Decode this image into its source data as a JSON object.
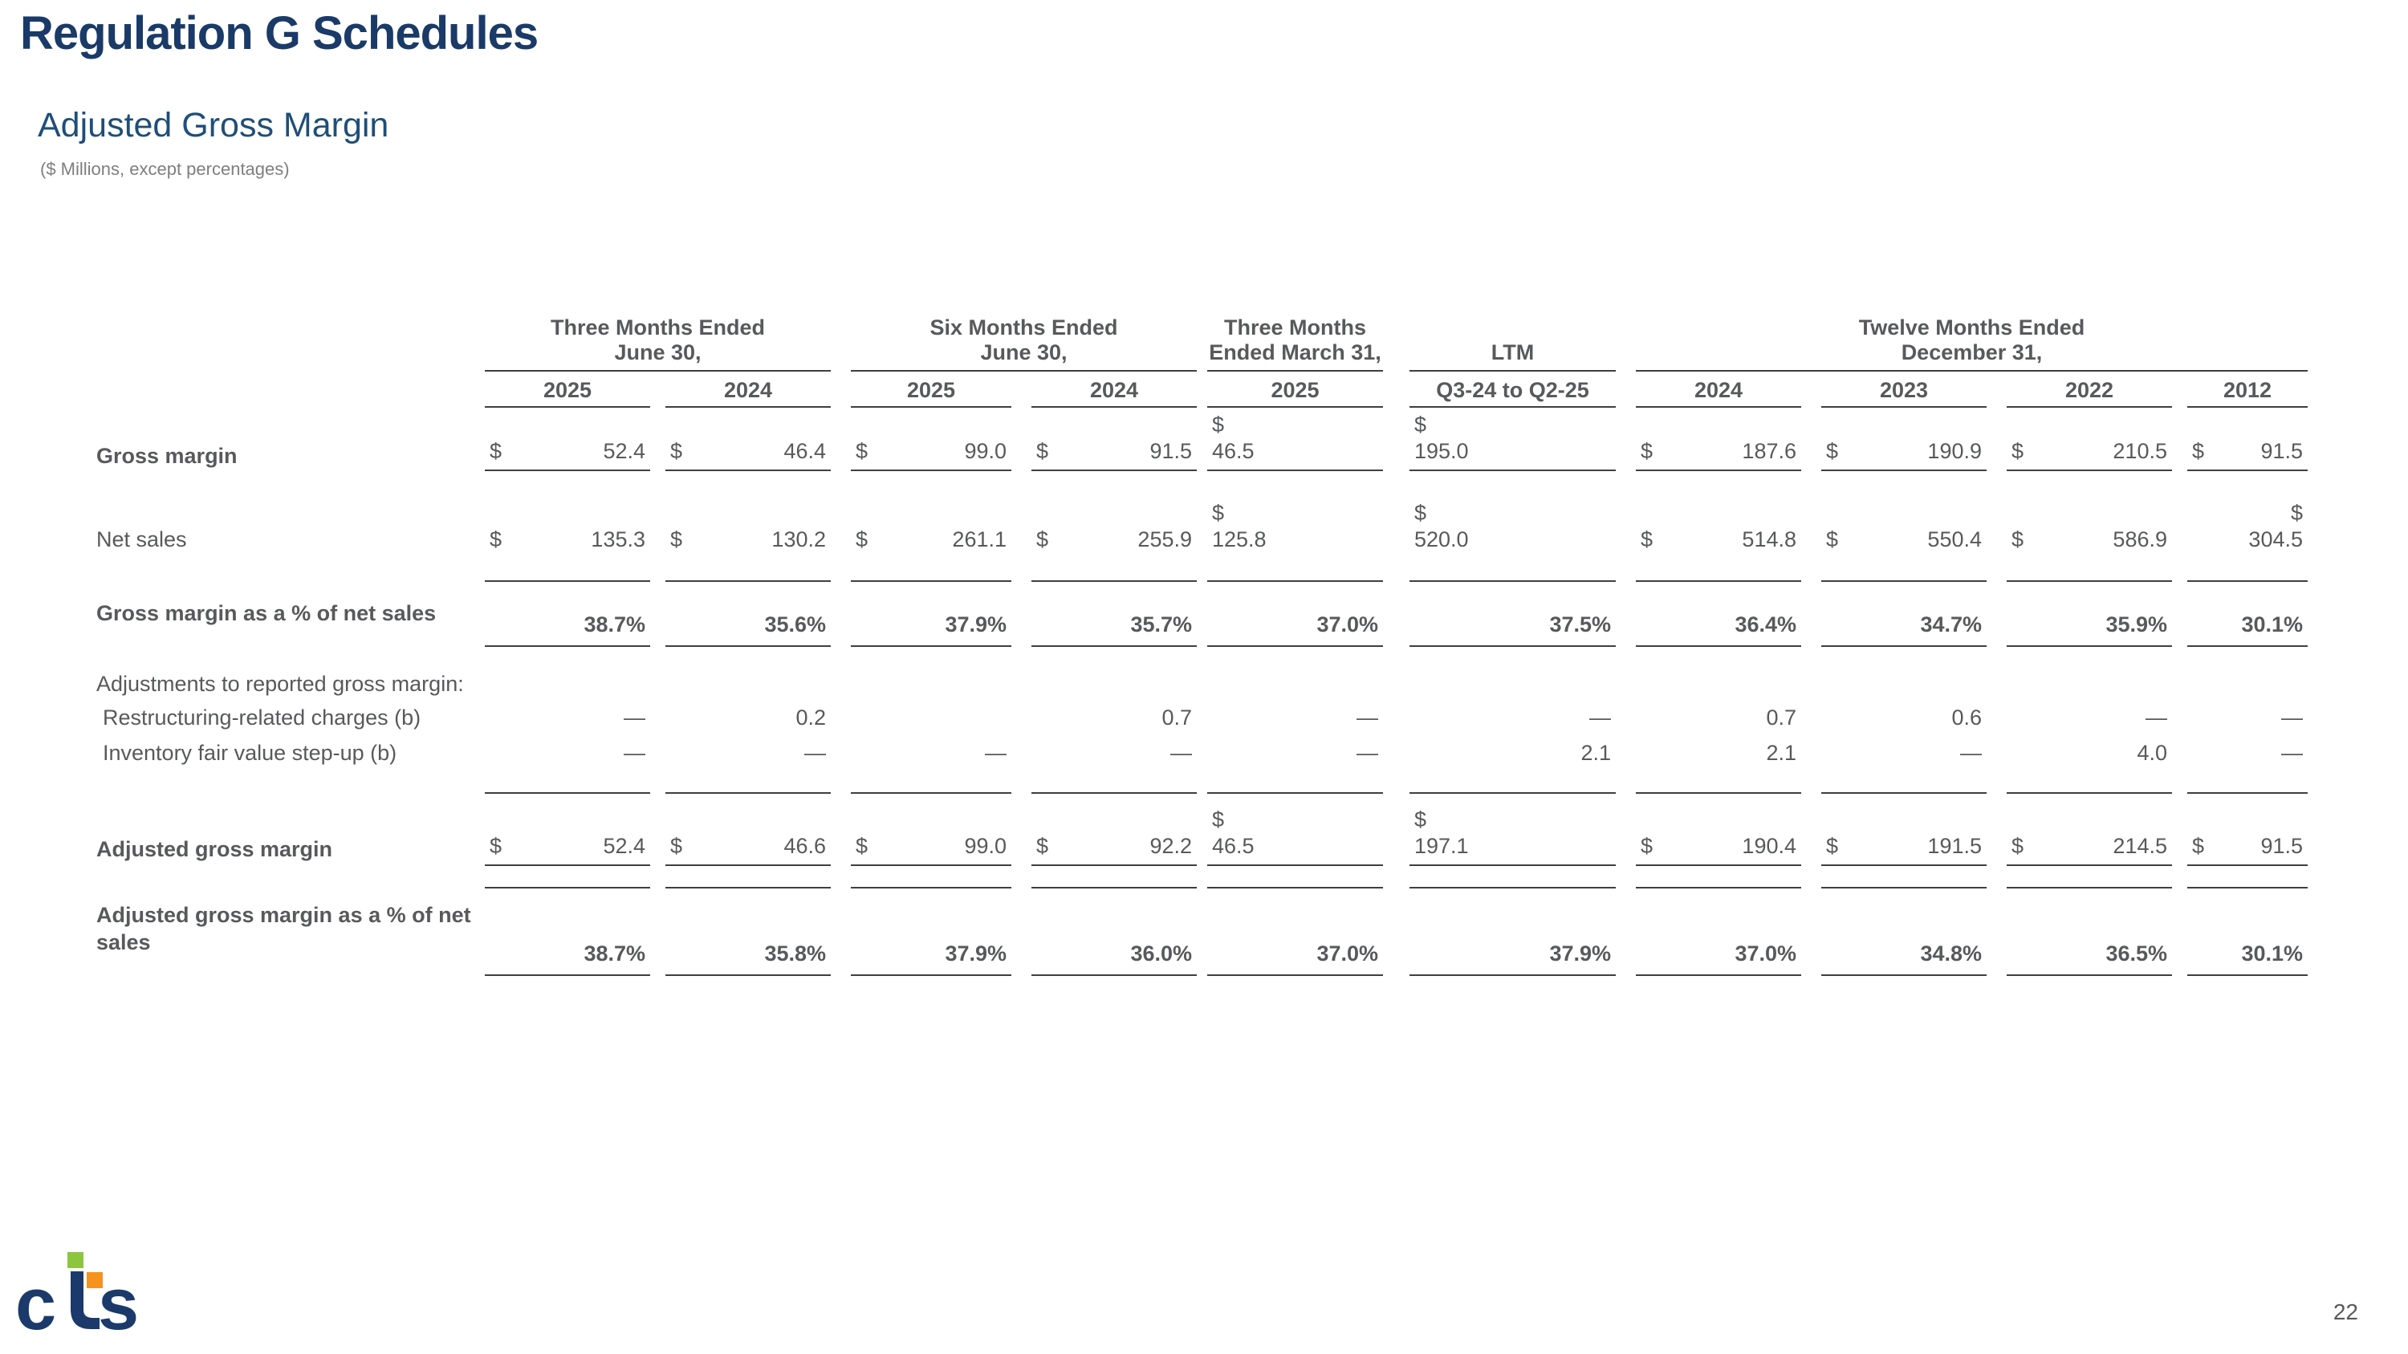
{
  "page": {
    "title": "Regulation G Schedules",
    "subtitle": "Adjusted Gross Margin",
    "units_note": "($ Millions, except percentages)",
    "page_number": "22",
    "logo": {
      "text": "cts",
      "c": "c",
      "s": "s",
      "navy": "#1b3a6b",
      "green": "#8cc63f",
      "orange": "#f6921e"
    }
  },
  "colors": {
    "title": "#1a3a68",
    "subtitle": "#1f4e79",
    "body_text": "#58595b",
    "note_text": "#7f7f7f",
    "rule": "#3f3f3f"
  },
  "table": {
    "groups": [
      {
        "line1": "Three Months Ended",
        "line2": "June 30,",
        "span": 2
      },
      {
        "line1": "Six Months Ended",
        "line2": "June 30,",
        "span": 2
      },
      {
        "line1": "Three Months",
        "line2": "Ended March 31,",
        "span": 1
      },
      {
        "line1": "",
        "line2": "LTM",
        "span": 1
      },
      {
        "line1": "Twelve Months Ended",
        "line2": "December 31,",
        "span": 4
      }
    ],
    "columns": [
      "2025",
      "2024",
      "2025",
      "2024",
      "2025",
      "Q3-24 to Q2-25",
      "2024",
      "2023",
      "2022",
      "2012"
    ],
    "rows": [
      {
        "id": "gross-margin",
        "label": "Gross margin",
        "label_bold": true,
        "format": "currency",
        "border_bottom": true,
        "wrap_left": [
          4,
          5
        ],
        "wrap_right": [],
        "values": [
          "52.4",
          "46.4",
          "99.0",
          "91.5",
          "46.5",
          "195.0",
          "187.6",
          "190.9",
          "210.5",
          "91.5"
        ]
      },
      {
        "id": "net-sales",
        "label": "Net sales",
        "label_bold": false,
        "format": "currency",
        "border_bottom": false,
        "wrap_left": [
          4,
          5
        ],
        "wrap_right": [
          9
        ],
        "values": [
          "135.3",
          "130.2",
          "261.1",
          "255.9",
          "125.8",
          "520.0",
          "514.8",
          "550.4",
          "586.9",
          "304.5"
        ]
      },
      {
        "id": "gross-margin-pct",
        "label": "Gross margin as a % of net sales",
        "label_bold": true,
        "format": "percent",
        "bold_values": true,
        "border_top": true,
        "border_bottom": true,
        "values": [
          "38.7%",
          "35.6%",
          "37.9%",
          "35.7%",
          "37.0%",
          "37.5%",
          "36.4%",
          "34.7%",
          "35.9%",
          "30.1%"
        ]
      },
      {
        "id": "adjustments-header",
        "label": "Adjustments to reported gross margin:",
        "label_bold": false,
        "section": true,
        "values": []
      },
      {
        "id": "restructuring-charges",
        "label": "Restructuring-related charges (b)",
        "label_bold": false,
        "indent": true,
        "format": "plain",
        "values": [
          "—",
          "0.2",
          "",
          "0.7",
          "—",
          "—",
          "0.7",
          "0.6",
          "—",
          "—"
        ]
      },
      {
        "id": "inventory-step-up",
        "label": "Inventory fair value step-up (b)",
        "label_bold": false,
        "indent": true,
        "format": "plain",
        "values": [
          "—",
          "—",
          "—",
          "—",
          "—",
          "2.1",
          "2.1",
          "—",
          "4.0",
          "—"
        ]
      },
      {
        "id": "adjusted-gross-margin",
        "label": "Adjusted gross margin",
        "label_bold": true,
        "format": "currency",
        "border_top": true,
        "border_bottom": true,
        "wrap_left": [
          4,
          5
        ],
        "wrap_right": [],
        "values": [
          "52.4",
          "46.6",
          "99.0",
          "92.2",
          "46.5",
          "197.1",
          "190.4",
          "191.5",
          "214.5",
          "91.5"
        ]
      },
      {
        "id": "adjusted-gross-margin-pct",
        "label": "Adjusted gross margin as a % of net sales",
        "label_bold": true,
        "format": "percent",
        "bold_values": true,
        "border_top": true,
        "border_bottom": true,
        "values": [
          "38.7%",
          "35.8%",
          "37.9%",
          "36.0%",
          "37.0%",
          "37.9%",
          "37.0%",
          "34.8%",
          "36.5%",
          "30.1%"
        ]
      }
    ]
  }
}
